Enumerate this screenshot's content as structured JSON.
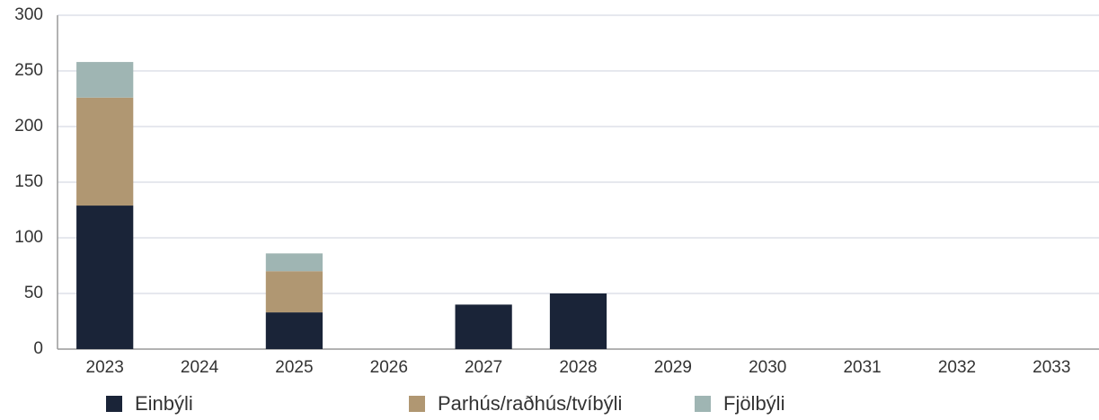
{
  "chart_data": {
    "type": "stacked_bar",
    "categories": [
      "2023",
      "2024",
      "2025",
      "2026",
      "2027",
      "2028",
      "2029",
      "2030",
      "2031",
      "2032",
      "2033"
    ],
    "series": [
      {
        "name": "Einbýli",
        "color": "#1a2438",
        "values": [
          129,
          0,
          33,
          0,
          40,
          50,
          0,
          0,
          0,
          0,
          0
        ]
      },
      {
        "name": "Parhús/raðhús/tvíbýli",
        "color": "#b09772",
        "values": [
          97,
          0,
          37,
          0,
          0,
          0,
          0,
          0,
          0,
          0,
          0
        ]
      },
      {
        "name": "Fjölbýli",
        "color": "#9fb5b3",
        "values": [
          32,
          0,
          16,
          0,
          0,
          0,
          0,
          0,
          0,
          0,
          0
        ]
      }
    ],
    "ylim": [
      0,
      300
    ],
    "yticks": [
      0,
      50,
      100,
      150,
      200,
      250,
      300
    ],
    "grid": true,
    "legend": "bottom"
  }
}
